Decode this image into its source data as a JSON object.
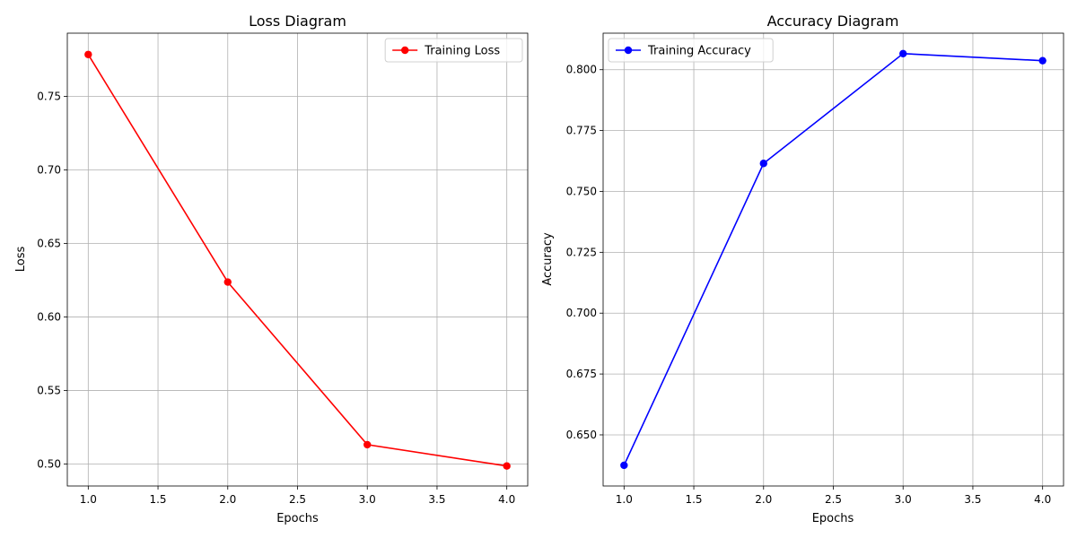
{
  "chart_data": [
    {
      "type": "line",
      "title": "Loss Diagram",
      "xlabel": "Epochs",
      "ylabel": "Loss",
      "xlim": [
        0.85,
        4.15
      ],
      "ylim": [
        0.485,
        0.793
      ],
      "xticks": [
        1.0,
        1.5,
        2.0,
        2.5,
        3.0,
        3.5,
        4.0
      ],
      "yticks": [
        0.5,
        0.55,
        0.6,
        0.65,
        0.7,
        0.75
      ],
      "x": [
        1,
        2,
        3,
        4
      ],
      "series": [
        {
          "name": "Training Loss",
          "values": [
            0.7785,
            0.6237,
            0.5131,
            0.4986
          ],
          "color": "#ff0000",
          "marker": "circle"
        }
      ],
      "grid": true,
      "legend": "upper right"
    },
    {
      "type": "line",
      "title": "Accuracy Diagram",
      "xlabel": "Epochs",
      "ylabel": "Accuracy",
      "xlim": [
        0.85,
        4.15
      ],
      "ylim": [
        0.629,
        0.815
      ],
      "xticks": [
        1.0,
        1.5,
        2.0,
        2.5,
        3.0,
        3.5,
        4.0
      ],
      "yticks": [
        0.65,
        0.675,
        0.7,
        0.725,
        0.75,
        0.775,
        0.8
      ],
      "x": [
        1,
        2,
        3,
        4
      ],
      "series": [
        {
          "name": "Training Accuracy",
          "values": [
            0.6375,
            0.7615,
            0.8066,
            0.8037
          ],
          "color": "#0000ff",
          "marker": "circle"
        }
      ],
      "grid": true,
      "legend": "upper left"
    }
  ]
}
